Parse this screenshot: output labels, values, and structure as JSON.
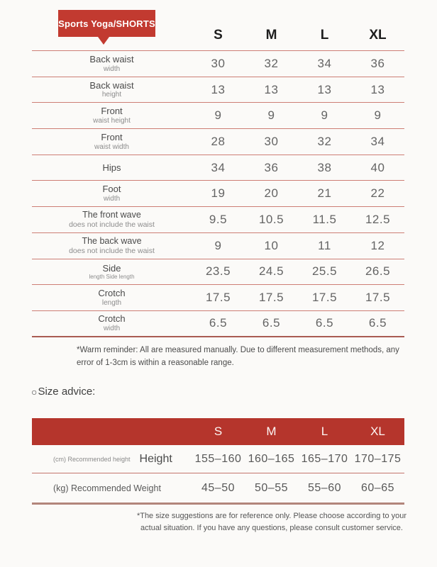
{
  "colors": {
    "badge_red": "#c23a30",
    "bar_red": "#b5352c",
    "row_line": "#cd7e75",
    "thick_line": "#a95c52"
  },
  "badge": {
    "label": "Sports Yoga/SHORTS"
  },
  "size_table": {
    "columns": [
      "S",
      "M",
      "L",
      "XL"
    ],
    "rows": [
      {
        "label": "Back waist",
        "sublabel": "width",
        "values": [
          "30",
          "32",
          "34",
          "36"
        ]
      },
      {
        "label": "Back waist",
        "sublabel": "height",
        "values": [
          "13",
          "13",
          "13",
          "13"
        ]
      },
      {
        "label": "Front",
        "sublabel": "waist height",
        "values": [
          "9",
          "9",
          "9",
          "9"
        ]
      },
      {
        "label": "Front",
        "sublabel": "waist width",
        "values": [
          "28",
          "30",
          "32",
          "34"
        ]
      },
      {
        "label": "Hips",
        "sublabel": "",
        "values": [
          "34",
          "36",
          "38",
          "40"
        ]
      },
      {
        "label": "Foot",
        "sublabel": "width",
        "values": [
          "19",
          "20",
          "21",
          "22"
        ]
      },
      {
        "label": "The front wave",
        "sublabel": "does not include the waist",
        "values": [
          "9.5",
          "10.5",
          "11.5",
          "12.5"
        ]
      },
      {
        "label": "The back wave",
        "sublabel": "does not include the waist",
        "values": [
          "9",
          "10",
          "11",
          "12"
        ]
      },
      {
        "label": "Side",
        "sublabel": "length Side length",
        "values": [
          "23.5",
          "24.5",
          "25.5",
          "26.5"
        ]
      },
      {
        "label": "Crotch",
        "sublabel": "length",
        "values": [
          "17.5",
          "17.5",
          "17.5",
          "17.5"
        ]
      },
      {
        "label": "Crotch",
        "sublabel": "width",
        "values": [
          "6.5",
          "6.5",
          "6.5",
          "6.5"
        ]
      }
    ]
  },
  "warm_reminder": "*Warm reminder: All are measured manually. Due to different measurement methods, any error of 1-3cm is within a reasonable range.",
  "size_advice": {
    "icon_glyph": "○",
    "label": "Size advice:"
  },
  "advice_table": {
    "columns": [
      "S",
      "M",
      "L",
      "XL"
    ],
    "rows": [
      {
        "pre": "(cm) Recommended height",
        "label": "Height",
        "values": [
          "155–160",
          "160–165",
          "165–170",
          "170–175"
        ]
      },
      {
        "pre": "(kg) Recommended Weight",
        "label": "",
        "values": [
          "45–50",
          "50–55",
          "55–60",
          "60–65"
        ]
      }
    ]
  },
  "footnote": "*The size suggestions are for reference only. Please choose according to your actual situation. If you have any questions, please consult customer service."
}
